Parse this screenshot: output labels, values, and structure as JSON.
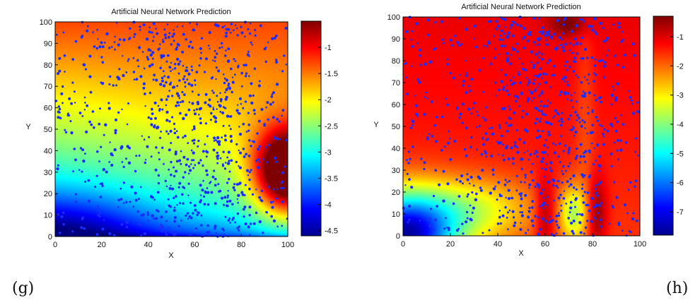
{
  "chart_data": [
    {
      "type": "heatmap",
      "panel_label": "(g)",
      "title": "Artificial Neural Network Prediction",
      "xlabel": "X",
      "ylabel": "Y",
      "xlim": [
        0,
        100
      ],
      "ylim": [
        0,
        100
      ],
      "xticks": [
        "0",
        "20",
        "40",
        "60",
        "80",
        "100"
      ],
      "yticks": [
        "0",
        "10",
        "20",
        "30",
        "40",
        "50",
        "60",
        "70",
        "80",
        "90",
        "100"
      ],
      "colorbar": {
        "range": [
          -4.6,
          -0.5
        ],
        "ticks": [
          "-1",
          "-1.5",
          "-2",
          "-2.5",
          "-3",
          "-3.5",
          "-4",
          "-4.5"
        ],
        "tick_values": [
          -1,
          -1.5,
          -2,
          -2.5,
          -3,
          -3.5,
          -4,
          -4.5
        ]
      },
      "colormap": "jet",
      "overlay": {
        "type": "scatter",
        "color": "#1a2cff",
        "description_points": 900
      },
      "field": "low values at bottom-left (about -4.5), rising to about -1.2 toward the top; hot spot near x=98, y=30 (about -0.6)"
    },
    {
      "type": "heatmap",
      "panel_label": "(h)",
      "title": "Artificial Neural Network Prediction",
      "xlabel": "X",
      "ylabel": "Y",
      "xlim": [
        0,
        100
      ],
      "ylim": [
        0,
        100
      ],
      "xticks": [
        "0",
        "20",
        "40",
        "60",
        "80",
        "100"
      ],
      "yticks": [
        "0",
        "10",
        "20",
        "30",
        "40",
        "50",
        "60",
        "70",
        "80",
        "90",
        "100"
      ],
      "colorbar": {
        "range": [
          -7.8,
          -0.3
        ],
        "ticks": [
          "-1",
          "-2",
          "-3",
          "-4",
          "-5",
          "-6",
          "-7"
        ],
        "tick_values": [
          -1,
          -2,
          -3,
          -4,
          -5,
          -6,
          -7
        ]
      },
      "colormap": "jet",
      "overlay": {
        "type": "scatter",
        "color": "#1a2cff",
        "description_points": 900
      },
      "field": "mostly about -1.5 to -2; low (about -7) at bottom-left corner; dark-red streaks near x=60 and x=82 at the bottom"
    }
  ]
}
